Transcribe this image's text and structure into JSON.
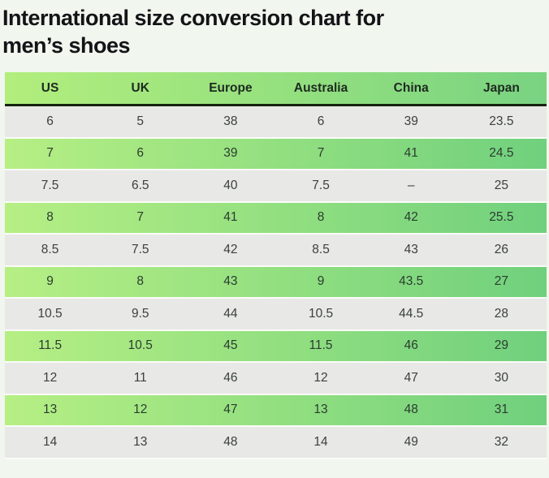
{
  "page": {
    "background_color": "#f1f6ee",
    "title_color": "#121417"
  },
  "title": {
    "line1": "International size conversion chart for",
    "line2": "men’s shoes"
  },
  "chart_data": {
    "type": "table",
    "title": "International size conversion chart for men’s shoes",
    "columns": [
      "US",
      "UK",
      "Europe",
      "Australia",
      "China",
      "Japan"
    ],
    "rows": [
      [
        "6",
        "5",
        "38",
        "6",
        "39",
        "23.5"
      ],
      [
        "7",
        "6",
        "39",
        "7",
        "41",
        "24.5"
      ],
      [
        "7.5",
        "6.5",
        "40",
        "7.5",
        "–",
        "25"
      ],
      [
        "8",
        "7",
        "41",
        "8",
        "42",
        "25.5"
      ],
      [
        "8.5",
        "7.5",
        "42",
        "8.5",
        "43",
        "26"
      ],
      [
        "9",
        "8",
        "43",
        "9",
        "43.5",
        "27"
      ],
      [
        "10.5",
        "9.5",
        "44",
        "10.5",
        "44.5",
        "28"
      ],
      [
        "11.5",
        "10.5",
        "45",
        "11.5",
        "46",
        "29"
      ],
      [
        "12",
        "11",
        "46",
        "12",
        "47",
        "30"
      ],
      [
        "13",
        "12",
        "47",
        "13",
        "48",
        "31"
      ],
      [
        "14",
        "13",
        "48",
        "14",
        "49",
        "32"
      ]
    ],
    "layout_hints": {
      "row_striping": "alternating, first data row gray, second green-gradient",
      "header_style": "green gradient with dark divider below"
    },
    "colors": {
      "header_gradient_left": "#b2ee7d",
      "header_gradient_right": "#79d381",
      "row_green_gradient_left": "#b6ef84",
      "row_green_gradient_right": "#70d07d",
      "row_gray": "#e8e8e6",
      "header_divider": "#16230f",
      "row_separator": "#fafcf7"
    }
  }
}
